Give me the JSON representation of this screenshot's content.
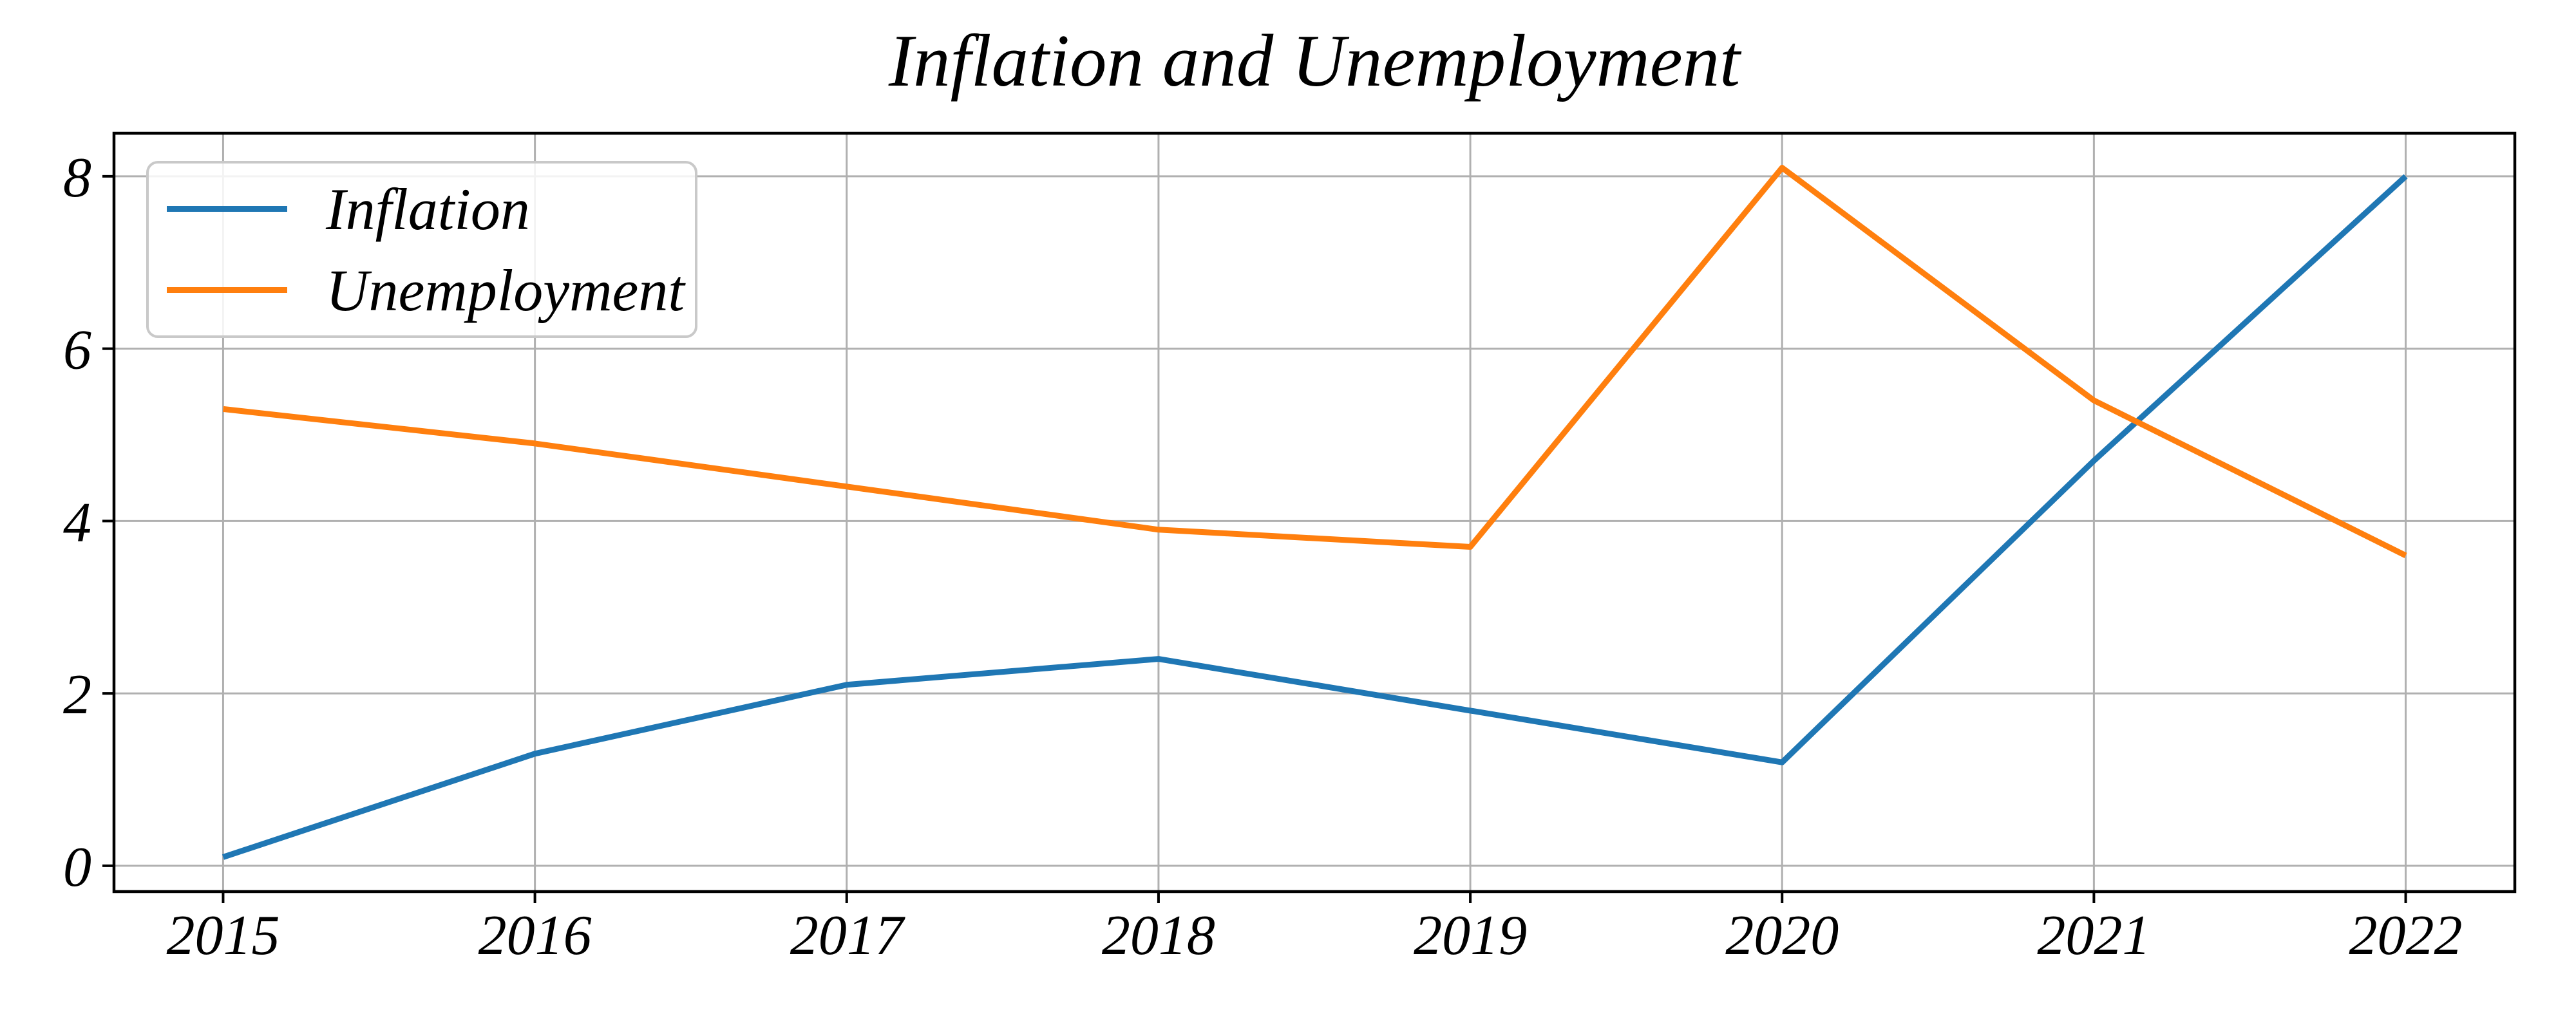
{
  "chart_data": {
    "type": "line",
    "title": "Inflation and Unemployment",
    "xlabel": "",
    "ylabel": "",
    "x": [
      2015,
      2016,
      2017,
      2018,
      2019,
      2020,
      2021,
      2022
    ],
    "x_tick_labels": [
      "2015",
      "2016",
      "2017",
      "2018",
      "2019",
      "2020",
      "2021",
      "2022"
    ],
    "y_ticks": [
      0,
      2,
      4,
      6,
      8
    ],
    "y_tick_labels": [
      "0",
      "2",
      "4",
      "6",
      "8"
    ],
    "xlim": [
      2014.65,
      2022.35
    ],
    "ylim": [
      -0.3,
      8.5
    ],
    "grid": true,
    "legend_position": "upper-left",
    "series": [
      {
        "name": "Inflation",
        "color": "#1f77b4",
        "values": [
          0.1,
          1.3,
          2.1,
          2.4,
          1.8,
          1.2,
          4.7,
          8.0
        ]
      },
      {
        "name": "Unemployment",
        "color": "#ff7f0e",
        "values": [
          5.3,
          4.9,
          4.4,
          3.9,
          3.7,
          8.1,
          5.4,
          3.6
        ]
      }
    ],
    "colors": {
      "grid": "#b0b0b0",
      "axis": "#000000",
      "background": "#ffffff"
    }
  }
}
